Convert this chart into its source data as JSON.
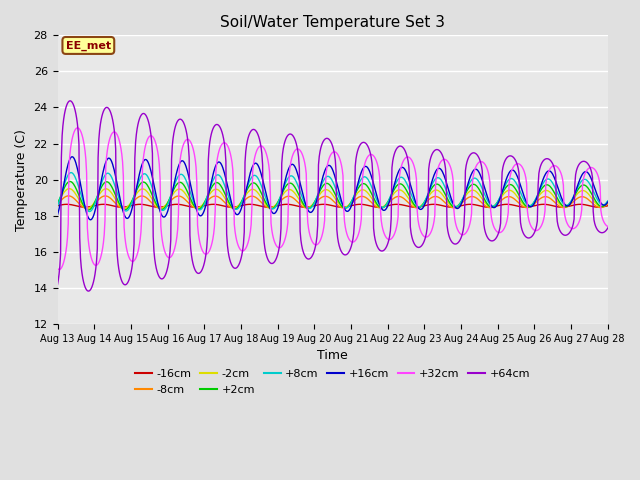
{
  "title": "Soil/Water Temperature Set 3",
  "xlabel": "Time",
  "ylabel": "Temperature (C)",
  "ylim": [
    12,
    28
  ],
  "yticks": [
    12,
    14,
    16,
    18,
    20,
    22,
    24,
    26,
    28
  ],
  "xtick_labels": [
    "Aug 13",
    "Aug 14",
    "Aug 15",
    "Aug 16",
    "Aug 17",
    "Aug 18",
    "Aug 19",
    "Aug 20",
    "Aug 21",
    "Aug 22",
    "Aug 23",
    "Aug 24",
    "Aug 25",
    "Aug 26",
    "Aug 27",
    "Aug 28"
  ],
  "background_color": "#e0e0e0",
  "plot_bg_color": "#e8e8e8",
  "grid_color": "#ffffff",
  "annotation_text": "EE_met",
  "annotation_bg": "#ffff99",
  "annotation_border": "#8b4513",
  "series": [
    {
      "label": "-16cm",
      "color": "#cc0000",
      "amplitude": 0.08,
      "phase_shift": 0.0,
      "base": 18.55,
      "decay": 0.0,
      "sharpness": 1.0
    },
    {
      "label": "-8cm",
      "color": "#ff8800",
      "amplitude": 0.35,
      "phase_shift": 0.05,
      "base": 18.75,
      "decay": 0.01,
      "sharpness": 1.0
    },
    {
      "label": "-2cm",
      "color": "#dddd00",
      "amplitude": 0.55,
      "phase_shift": 0.07,
      "base": 18.95,
      "decay": 0.015,
      "sharpness": 1.0
    },
    {
      "label": "+2cm",
      "color": "#00cc00",
      "amplitude": 0.8,
      "phase_shift": 0.09,
      "base": 19.1,
      "decay": 0.02,
      "sharpness": 1.0
    },
    {
      "label": "+8cm",
      "color": "#00cccc",
      "amplitude": 1.1,
      "phase_shift": 0.12,
      "base": 19.3,
      "decay": 0.03,
      "sharpness": 1.0
    },
    {
      "label": "+16cm",
      "color": "#0000cc",
      "amplitude": 1.8,
      "phase_shift": 0.15,
      "base": 19.5,
      "decay": 0.045,
      "sharpness": 1.0
    },
    {
      "label": "+32cm",
      "color": "#ff44ff",
      "amplitude": 4.0,
      "phase_shift": 0.3,
      "base": 19.0,
      "decay": 0.06,
      "sharpness": 3.0
    },
    {
      "label": "+64cm",
      "color": "#9900cc",
      "amplitude": 5.5,
      "phase_shift": 0.1,
      "base": 19.0,
      "decay": 0.07,
      "sharpness": 4.0
    }
  ]
}
